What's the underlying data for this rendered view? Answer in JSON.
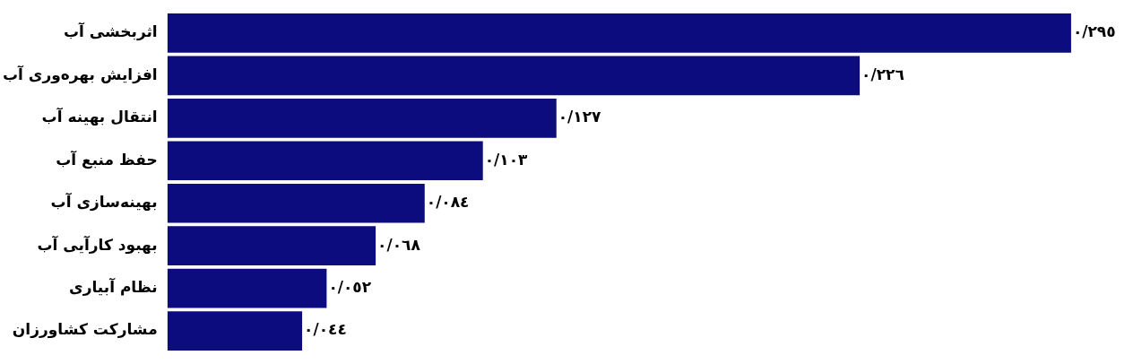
{
  "chart_data": {
    "type": "bar",
    "orientation": "horizontal",
    "categories": [
      "اثربخشی آب",
      "افزایش بهره‌وری آب",
      "انتقال بهینه آب",
      "حفظ منبع آب",
      "بهینه‌سازی آب",
      "بهبود کارآیی آب",
      "نظام آبیاری",
      "مشارکت کشاورزان"
    ],
    "values": [
      0.295,
      0.226,
      0.127,
      0.103,
      0.084,
      0.068,
      0.052,
      0.044
    ],
    "value_labels": [
      "٠/٢٩٥",
      "٠/٢٢٦",
      "٠/١٢٧",
      "٠/١٠٣",
      "٠/٠٨٤",
      "٠/٠٦٨",
      "٠/٠٥٢",
      "٠/٠٤٤"
    ],
    "color": "#0c0c7e"
  }
}
